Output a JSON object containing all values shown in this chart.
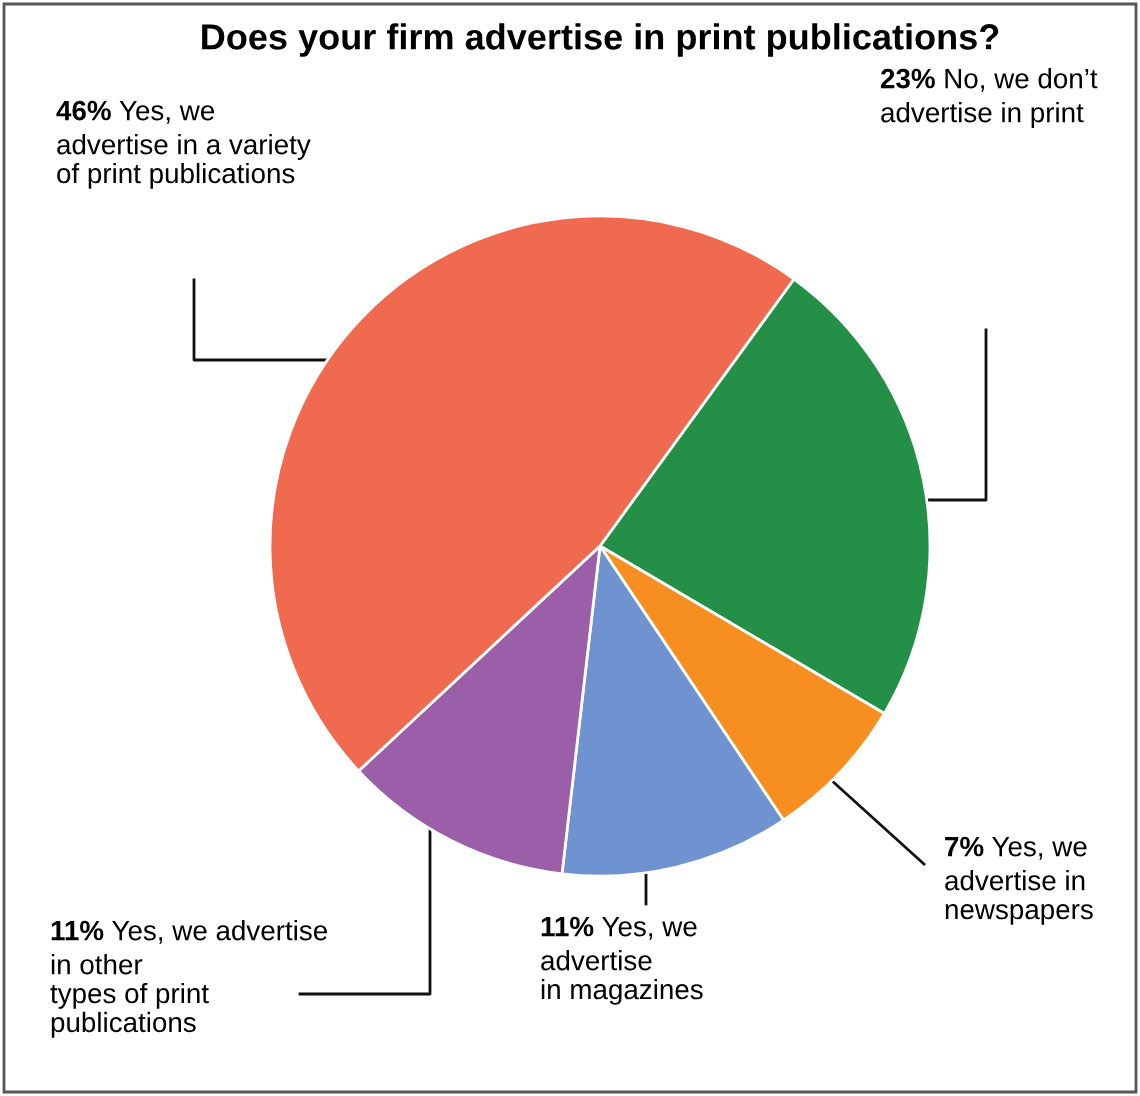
{
  "chart_data": {
    "type": "pie",
    "title": "Does your firm advertise in print publications?",
    "categories": [
      "No, we don’t\nadvertise in print",
      "Yes, we\nadvertise in\nnewspapers",
      "Yes, we\nadvertise\nin magazines",
      "Yes, we advertise\nin other\ntypes of print\npublications",
      "Yes, we\nadvertise in a variety\nof print publications"
    ],
    "values": [
      23,
      7,
      11,
      11,
      46
    ],
    "value_labels": [
      "23%",
      "7%",
      "11%",
      "11%",
      "46%"
    ],
    "colors": [
      "#248f47",
      "#f78f20",
      "#6f93d1",
      "#9b5ea8",
      "#ef6a4f"
    ]
  }
}
